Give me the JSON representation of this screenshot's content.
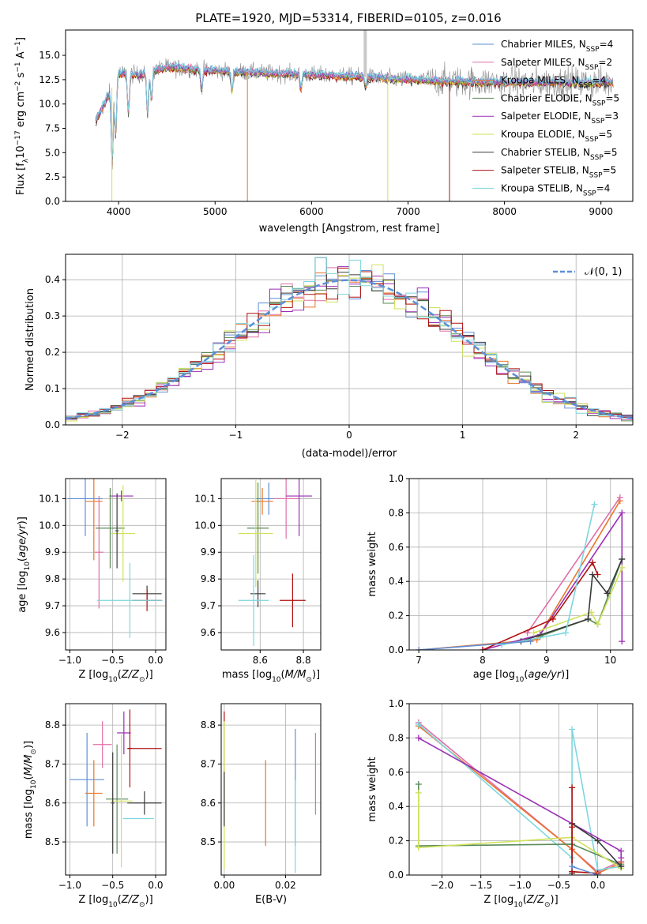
{
  "figure_title": "PLATE=1920, MJD=53314, FIBERID=0105, z=0.016",
  "colors": {
    "c1": "#5f8fd6",
    "c2": "#e06fa8",
    "c3": "#e8762b",
    "c4": "#5a8a5a",
    "c5": "#9b2fb5",
    "c6": "#cfe25a",
    "c7": "#3a3a3a",
    "c8": "#b01010",
    "c9": "#7dd6de"
  },
  "chart_data": [
    {
      "id": "spectrum",
      "type": "line",
      "xlabel": "wavelength [Angstrom, rest frame]",
      "ylabel": "Flux [f_λ 10^-17 erg cm^-2 s^-1 A^-1]",
      "xlim": [
        3450,
        9330
      ],
      "ylim": [
        0,
        17.6
      ],
      "xticks": [
        "4000",
        "5000",
        "6000",
        "7000",
        "8000",
        "9000"
      ],
      "yticks": [
        "0.0",
        "2.5",
        "5.0",
        "7.5",
        "10.0",
        "12.5",
        "15.0"
      ],
      "grid": false,
      "legend_position": "upper-right",
      "series": [
        {
          "name": "Chabrier MILES, N_SSP=4",
          "color": "c1"
        },
        {
          "name": "Salpeter MILES, N_SSP=2",
          "color": "c2"
        },
        {
          "name": "Kroupa MILES, N_SSP=4",
          "color": "c3"
        },
        {
          "name": "Chabrier ELODIE, N_SSP=5",
          "color": "c4"
        },
        {
          "name": "Salpeter ELODIE, N_SSP=3",
          "color": "c5"
        },
        {
          "name": "Kroupa ELODIE, N_SSP=5",
          "color": "c6"
        },
        {
          "name": "Chabrier STELIB, N_SSP=5",
          "color": "c7"
        },
        {
          "name": "Salpeter STELIB, N_SSP=5",
          "color": "c8"
        },
        {
          "name": "Kroupa STELIB, N_SSP=4",
          "color": "c9"
        }
      ],
      "continuum": {
        "x": [
          3750,
          3900,
          4000,
          4200,
          4500,
          5000,
          5500,
          6000,
          6500,
          7000,
          7500,
          8000,
          8500,
          9000,
          9100
        ],
        "y": [
          8.0,
          11.0,
          13.2,
          13.0,
          13.8,
          13.4,
          13.2,
          13.0,
          12.8,
          12.5,
          12.3,
          12.2,
          12.2,
          12.2,
          12.2
        ]
      }
    },
    {
      "id": "residuals",
      "type": "step",
      "xlabel": "(data-model)/error",
      "ylabel": "Normed distribution",
      "xlim": [
        -2.5,
        2.5
      ],
      "ylim": [
        0,
        0.47
      ],
      "xticks": [
        "-2",
        "-1",
        "0",
        "1",
        "2"
      ],
      "yticks": [
        "0.0",
        "0.1",
        "0.2",
        "0.3",
        "0.4"
      ],
      "grid": true,
      "legend_position": "upper-right",
      "gaussian_label": "N(0, 1)",
      "bin_width": 0.1
    },
    {
      "id": "age_vs_Z",
      "type": "errorbar",
      "xlabel": "Z [log10(Z/Z⊙)]",
      "ylabel": "age [log10(age/yr)]",
      "xlim": [
        -1.05,
        0.12
      ],
      "ylim": [
        9.535,
        10.175
      ],
      "xticks": [
        "-1.0",
        "-0.5",
        "0.0"
      ],
      "yticks": [
        "9.6",
        "9.7",
        "9.8",
        "9.9",
        "10.0",
        "10.1"
      ],
      "points": [
        {
          "c": "c1",
          "x": -0.82,
          "xe": 0.2,
          "y": 10.1,
          "ye": 0.14
        },
        {
          "c": "c3",
          "x": -0.72,
          "xe": 0.1,
          "y": 10.09,
          "ye": 0.22
        },
        {
          "c": "c2",
          "x": -0.66,
          "xe": 0.05,
          "y": 9.9,
          "ye": 0.21
        },
        {
          "c": "c5",
          "x": -0.4,
          "xe": 0.14,
          "y": 10.11,
          "ye": 0.02
        },
        {
          "c": "c4",
          "x": -0.53,
          "xe": 0.17,
          "y": 9.99,
          "ye": 0.15
        },
        {
          "c": "c6",
          "x": -0.38,
          "xe": 0.14,
          "y": 9.97,
          "ye": 0.18
        },
        {
          "c": "c7",
          "x": -0.45,
          "xe": 0.02,
          "y": 9.98,
          "ye": 0.14
        },
        {
          "c": "c7",
          "x": -0.1,
          "xe": 0.17,
          "y": 9.745,
          "ye": 0.03
        },
        {
          "c": "c8",
          "x": -0.1,
          "xe": 0.17,
          "y": 9.72,
          "ye": 0.04
        },
        {
          "c": "c9",
          "x": -0.3,
          "xe": 0.38,
          "y": 9.72,
          "ye": 0.14
        }
      ]
    },
    {
      "id": "age_vs_mass",
      "type": "errorbar",
      "xlabel": "mass [log10(M/M⊙)]",
      "ylabel": "",
      "xlim": [
        8.42,
        8.88
      ],
      "ylim": [
        9.535,
        10.175
      ],
      "xticks": [
        "8.6",
        "8.8"
      ],
      "yticks": [
        "9.6",
        "9.7",
        "9.8",
        "9.9",
        "10.0",
        "10.1"
      ],
      "points": [
        {
          "c": "c1",
          "x": 8.64,
          "xe": 0.06,
          "y": 10.1,
          "ye": 0.06
        },
        {
          "c": "c3",
          "x": 8.61,
          "xe": 0.05,
          "y": 10.09,
          "ye": 0.05
        },
        {
          "c": "c2",
          "x": 8.72,
          "xe": 0.06,
          "y": 10.1,
          "ye": 0.15
        },
        {
          "c": "c5",
          "x": 8.78,
          "xe": 0.06,
          "y": 10.11,
          "ye": 0.15
        },
        {
          "c": "c4",
          "x": 8.59,
          "xe": 0.05,
          "y": 9.99,
          "ye": 0.17
        },
        {
          "c": "c6",
          "x": 8.58,
          "xe": 0.08,
          "y": 9.97,
          "ye": 0.2
        },
        {
          "c": "c7",
          "x": 8.59,
          "xe": 0.035,
          "y": 9.745,
          "ye": 0.05
        },
        {
          "c": "c8",
          "x": 8.75,
          "xe": 0.06,
          "y": 9.72,
          "ye": 0.1
        },
        {
          "c": "c9",
          "x": 8.57,
          "xe": 0.07,
          "y": 9.72,
          "ye": 0.17
        }
      ]
    },
    {
      "id": "weight_vs_age",
      "type": "line",
      "xlabel": "age [log10(age/yr)]",
      "ylabel": "mass weight",
      "xlim": [
        6.85,
        10.35
      ],
      "ylim": [
        0,
        1.0
      ],
      "xticks": [
        "7",
        "8",
        "9",
        "10"
      ],
      "yticks": [
        "0.0",
        "0.2",
        "0.4",
        "0.6",
        "0.8",
        "1.0"
      ],
      "grid": true,
      "series": [
        {
          "c": "c3",
          "x": [
            7.0,
            8.85,
            10.15
          ],
          "y": [
            0.0,
            0.06,
            0.87
          ]
        },
        {
          "c": "c2",
          "x": [
            8.7,
            10.15
          ],
          "y": [
            0.1,
            0.89
          ]
        },
        {
          "c": "c5",
          "x": [
            8.0,
            8.9,
            10.18,
            10.18
          ],
          "y": [
            0.0,
            0.09,
            0.8,
            0.05
          ]
        },
        {
          "c": "c4",
          "x": [
            8.9,
            9.65,
            9.8,
            10.18
          ],
          "y": [
            0.08,
            0.18,
            0.15,
            0.53
          ]
        },
        {
          "c": "c6",
          "x": [
            8.8,
            9.7,
            9.8,
            10.18
          ],
          "y": [
            0.1,
            0.22,
            0.15,
            0.48
          ]
        },
        {
          "c": "c7",
          "x": [
            8.6,
            9.65,
            9.72,
            9.95,
            10.18
          ],
          "y": [
            0.05,
            0.18,
            0.44,
            0.33,
            0.53
          ]
        },
        {
          "c": "c8",
          "x": [
            8.0,
            9.1,
            9.72,
            9.8
          ],
          "y": [
            0.0,
            0.18,
            0.51,
            0.44
          ]
        },
        {
          "c": "c9",
          "x": [
            8.3,
            9.3,
            9.75
          ],
          "y": [
            0.03,
            0.1,
            0.85
          ]
        },
        {
          "c": "c1",
          "x": [
            7.0,
            8.75
          ],
          "y": [
            0.0,
            0.05
          ]
        }
      ]
    },
    {
      "id": "mass_vs_Z",
      "type": "errorbar",
      "xlabel": "Z [log10(Z/Z⊙)]",
      "ylabel": "mass [log10(M/M⊙)]",
      "xlim": [
        -1.05,
        0.12
      ],
      "ylim": [
        8.415,
        8.855
      ],
      "xticks": [
        "-1.0",
        "-0.5",
        "0.0"
      ],
      "yticks": [
        "8.5",
        "8.6",
        "8.7",
        "8.8"
      ],
      "points": [
        {
          "c": "c1",
          "x": -0.8,
          "xe": 0.2,
          "y": 8.66,
          "ye": 0.12
        },
        {
          "c": "c3",
          "x": -0.72,
          "xe": 0.1,
          "y": 8.625,
          "ye": 0.085
        },
        {
          "c": "c2",
          "x": -0.62,
          "xe": 0.11,
          "y": 8.75,
          "ye": 0.06
        },
        {
          "c": "c5",
          "x": -0.37,
          "xe": 0.08,
          "y": 8.78,
          "ye": 0.055
        },
        {
          "c": "c4",
          "x": -0.45,
          "xe": 0.13,
          "y": 8.61,
          "ye": 0.14
        },
        {
          "c": "c6",
          "x": -0.4,
          "xe": 0.13,
          "y": 8.605,
          "ye": 0.17
        },
        {
          "c": "c7",
          "x": -0.5,
          "xe": 0.02,
          "y": 8.6,
          "ye": 0.13
        },
        {
          "c": "c7",
          "x": -0.13,
          "xe": 0.2,
          "y": 8.6,
          "ye": 0.03
        },
        {
          "c": "c8",
          "x": -0.3,
          "xe": 0.02,
          "y": 8.74,
          "ye": 0.1
        },
        {
          "c": "c8",
          "x": -0.13,
          "xe": 0.2,
          "y": 8.74,
          "ye": 0.0
        },
        {
          "c": "c9",
          "x": -0.2,
          "xe": 0.18,
          "y": 8.56,
          "ye": 0.0
        }
      ]
    },
    {
      "id": "mass_vs_ebv",
      "type": "errorbar",
      "xlabel": "E(B-V)",
      "ylabel": "",
      "xlim": [
        -0.001,
        0.0315
      ],
      "ylim": [
        8.415,
        8.855
      ],
      "xticks": [
        "0.00",
        "0.02"
      ],
      "yticks": [
        "8.5",
        "8.6",
        "8.7",
        "8.8"
      ],
      "points": [
        {
          "c": "c8",
          "x": 0.0,
          "y": 8.69,
          "ye": 0.145
        },
        {
          "c": "c6",
          "x": 0.0,
          "y": 8.62,
          "ye": 0.19
        },
        {
          "c": "c7",
          "x": 0.0,
          "y": 8.61,
          "ye": 0.07
        },
        {
          "c": "c3",
          "x": 0.0135,
          "y": 8.6,
          "ye": 0.11
        },
        {
          "c": "c1",
          "x": 0.0232,
          "y": 8.64,
          "ye": 0.15
        },
        {
          "c": "c9",
          "x": 0.0232,
          "y": 8.54,
          "ye": 0.12
        },
        {
          "c": "c2",
          "x": 0.0298,
          "y": 8.675,
          "ye": 0.105
        }
      ]
    },
    {
      "id": "weight_vs_Z",
      "type": "line",
      "xlabel": "Z [log10(Z/Z⊙)]",
      "ylabel": "mass weight",
      "xlim": [
        -2.42,
        0.45
      ],
      "ylim": [
        0,
        1.0
      ],
      "xticks": [
        "-2.0",
        "-1.5",
        "-1.0",
        "-0.5",
        "0.0"
      ],
      "yticks": [
        "0.0",
        "0.2",
        "0.4",
        "0.6",
        "0.8",
        "1.0"
      ],
      "grid": true,
      "series": [
        {
          "c": "c2",
          "x": [
            -2.3,
            -0.33,
            0.0,
            0.3
          ],
          "y": [
            0.89,
            0.15,
            0.02,
            0.08
          ]
        },
        {
          "c": "c3",
          "x": [
            -2.3,
            -0.33,
            0.0,
            0.3
          ],
          "y": [
            0.87,
            0.15,
            0.01,
            0.07
          ]
        },
        {
          "c": "c9",
          "x": [
            -2.3,
            -0.33,
            -0.33,
            0.0,
            0.3
          ],
          "y": [
            0.88,
            0.1,
            0.85,
            0.03,
            0.05
          ]
        },
        {
          "c": "c5",
          "x": [
            -2.3,
            -0.33,
            0.3,
            0.3
          ],
          "y": [
            0.8,
            0.3,
            0.14,
            0.1
          ]
        },
        {
          "c": "c4",
          "x": [
            -2.3,
            -2.3,
            -0.33,
            0.3
          ],
          "y": [
            0.53,
            0.17,
            0.18,
            0.06
          ]
        },
        {
          "c": "c6",
          "x": [
            -2.3,
            -2.3,
            -0.33,
            0.3
          ],
          "y": [
            0.48,
            0.16,
            0.22,
            0.04
          ]
        },
        {
          "c": "c7",
          "x": [
            -0.33,
            -0.33,
            0.0,
            0.3
          ],
          "y": [
            0.01,
            0.3,
            0.2,
            0.05
          ]
        },
        {
          "c": "c8",
          "x": [
            -0.33,
            -0.33,
            -0.33,
            0.0
          ],
          "y": [
            0.51,
            0.28,
            0.02,
            0.01
          ]
        },
        {
          "c": "c1",
          "x": [
            -0.33,
            0.0
          ],
          "y": [
            0.05,
            0.0
          ]
        }
      ]
    }
  ]
}
